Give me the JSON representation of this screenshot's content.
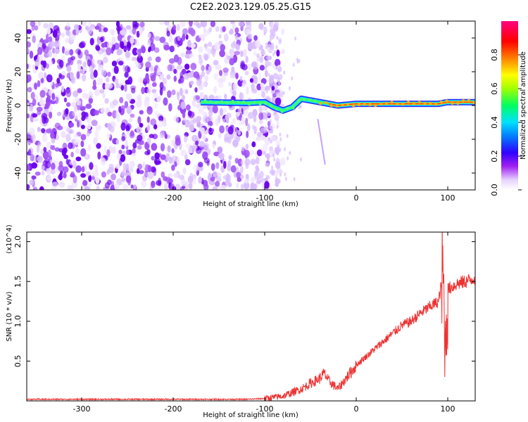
{
  "title": "C2E2.2023.129.05.25.G15",
  "chart_data": [
    {
      "type": "heatmap",
      "name": "spectrogram",
      "xlabel": "Height of straight line (km)",
      "ylabel": "Frequency (Hz)",
      "xlim": [
        -360,
        130
      ],
      "ylim": [
        -50,
        50
      ],
      "xticks": [
        -300,
        -200,
        -100,
        0,
        100
      ],
      "xtick_labels": [
        "-300",
        "-200",
        "-100",
        "0",
        "100"
      ],
      "yticks": [
        -40,
        -20,
        0,
        20,
        40
      ],
      "ytick_labels": [
        "-40",
        "-20",
        "0",
        "20",
        "40"
      ],
      "colorbar": {
        "label": "Normalized spectral amplitude",
        "range": [
          0,
          1
        ],
        "ticks": [
          0.0,
          0.2,
          0.4,
          0.6,
          0.8
        ],
        "tick_labels": [
          "0.0",
          "0.2",
          "0.4",
          "0.6",
          "0.8"
        ],
        "colors": [
          "#ffffff",
          "#e6d2ff",
          "#a020f0",
          "#3000ff",
          "#0080ff",
          "#00e0ff",
          "#00ff60",
          "#a0ff00",
          "#ffff00",
          "#ff8000",
          "#ff0000",
          "#ff0080"
        ]
      },
      "ridge_line": {
        "description_colors": [
          "#00ff60",
          "#ff0000"
        ],
        "points": [
          [
            -170,
            2
          ],
          [
            -120,
            1.5
          ],
          [
            -100,
            2
          ],
          [
            -90,
            -1
          ],
          [
            -80,
            -3
          ],
          [
            -70,
            -1
          ],
          [
            -60,
            4
          ],
          [
            -50,
            3
          ],
          [
            -40,
            2
          ],
          [
            -30,
            1
          ],
          [
            -20,
            0
          ],
          [
            0,
            1
          ],
          [
            50,
            1
          ],
          [
            90,
            1
          ],
          [
            100,
            2
          ],
          [
            130,
            2
          ]
        ]
      }
    },
    {
      "type": "line",
      "name": "snr",
      "xlabel": "Height of straight line (km)",
      "ylabel": "SNR (10 * v/v)",
      "y_multiplier": "(x10^4)",
      "xlim": [
        -360,
        130
      ],
      "ylim": [
        0,
        2.12
      ],
      "xticks": [
        -300,
        -200,
        -100,
        0,
        100
      ],
      "xtick_labels": [
        "-300",
        "-200",
        "-100",
        "0",
        "100"
      ],
      "yticks": [
        0.5,
        1.0,
        1.5,
        2.0
      ],
      "ytick_labels": [
        "0.5",
        "1.0",
        "1.5",
        "2.0"
      ],
      "color": "#ee3333",
      "series": [
        {
          "x": [
            -360,
            -300,
            -200,
            -120,
            -100,
            -80,
            -60,
            -50,
            -40,
            -35,
            -30,
            -25,
            -20,
            -10,
            0,
            10,
            20,
            30,
            40,
            50,
            60,
            70,
            80,
            90,
            95,
            97,
            100,
            110,
            120,
            130
          ],
          "y": [
            0.02,
            0.02,
            0.02,
            0.02,
            0.03,
            0.06,
            0.15,
            0.22,
            0.28,
            0.35,
            0.25,
            0.2,
            0.15,
            0.3,
            0.45,
            0.55,
            0.65,
            0.75,
            0.85,
            0.95,
            1.0,
            1.1,
            1.18,
            1.25,
            1.6,
            0.6,
            1.4,
            1.47,
            1.5,
            1.55
          ]
        }
      ]
    }
  ]
}
